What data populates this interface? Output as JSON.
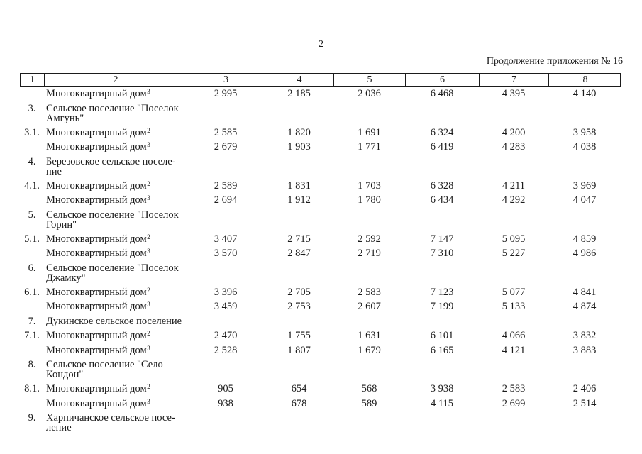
{
  "page": {
    "page_number": "2",
    "continuation_note": "Продолжение приложения № 16"
  },
  "colors": {
    "background": "#ffffff",
    "text": "#1b1b1b",
    "table_border": "#1b1b1b"
  },
  "table": {
    "header": [
      "1",
      "2",
      "3",
      "4",
      "5",
      "6",
      "7",
      "8"
    ],
    "rows": [
      {
        "num": "",
        "label": "Многоквартирный дом",
        "sup": "3",
        "values": [
          "2 995",
          "2 185",
          "2 036",
          "6 468",
          "4 395",
          "4 140"
        ]
      },
      {
        "num": "3.",
        "label": "Сельское поселение \"Поселок\nАмгунь\"",
        "values": []
      },
      {
        "num": "3.1.",
        "label": "Многоквартирный дом",
        "sup": "2",
        "values": [
          "2 585",
          "1 820",
          "1 691",
          "6 324",
          "4 200",
          "3 958"
        ]
      },
      {
        "num": "",
        "label": "Многоквартирный дом",
        "sup": "3",
        "values": [
          "2 679",
          "1 903",
          "1 771",
          "6 419",
          "4 283",
          "4 038"
        ]
      },
      {
        "num": "4.",
        "label": "Березовское сельское поселе-\nние",
        "values": []
      },
      {
        "num": "4.1.",
        "label": "Многоквартирный дом",
        "sup": "2",
        "values": [
          "2 589",
          "1 831",
          "1 703",
          "6 328",
          "4 211",
          "3 969"
        ]
      },
      {
        "num": "",
        "label": "Многоквартирный дом",
        "sup": "3",
        "values": [
          "2 694",
          "1 912",
          "1 780",
          "6 434",
          "4 292",
          "4 047"
        ]
      },
      {
        "num": "5.",
        "label": "Сельское поселение \"Поселок\nГорин\"",
        "values": []
      },
      {
        "num": "5.1.",
        "label": "Многоквартирный дом",
        "sup": "2",
        "values": [
          "3 407",
          "2 715",
          "2 592",
          "7 147",
          "5 095",
          "4 859"
        ]
      },
      {
        "num": "",
        "label": "Многоквартирный дом",
        "sup": "3",
        "values": [
          "3 570",
          "2 847",
          "2 719",
          "7 310",
          "5 227",
          "4 986"
        ]
      },
      {
        "num": "6.",
        "label": "Сельское поселение \"Поселок\nДжамку\"",
        "values": []
      },
      {
        "num": "6.1.",
        "label": "Многоквартирный дом",
        "sup": "2",
        "values": [
          "3 396",
          "2 705",
          "2 583",
          "7 123",
          "5 077",
          "4 841"
        ]
      },
      {
        "num": "",
        "label": "Многоквартирный дом",
        "sup": "3",
        "values": [
          "3 459",
          "2 753",
          "2 607",
          "7 199",
          "5 133",
          "4 874"
        ]
      },
      {
        "num": "7.",
        "label": "Дукинское сельское поселение",
        "values": []
      },
      {
        "num": "7.1.",
        "label": "Многоквартирный дом",
        "sup": "2",
        "values": [
          "2 470",
          "1 755",
          "1 631",
          "6 101",
          "4 066",
          "3 832"
        ]
      },
      {
        "num": "",
        "label": "Многоквартирный дом",
        "sup": "3",
        "values": [
          "2 528",
          "1 807",
          "1 679",
          "6 165",
          "4 121",
          "3 883"
        ]
      },
      {
        "num": "8.",
        "label": "Сельское поселение \"Село\nКондон\"",
        "values": []
      },
      {
        "num": "8.1.",
        "label": "Многоквартирный дом",
        "sup": "2",
        "values": [
          "905",
          "654",
          "568",
          "3 938",
          "2 583",
          "2 406"
        ]
      },
      {
        "num": "",
        "label": "Многоквартирный дом",
        "sup": "3",
        "values": [
          "938",
          "678",
          "589",
          "4 115",
          "2 699",
          "2 514"
        ]
      },
      {
        "num": "9.",
        "label": "Харпичанское сельское посе-\nление",
        "values": []
      }
    ]
  }
}
